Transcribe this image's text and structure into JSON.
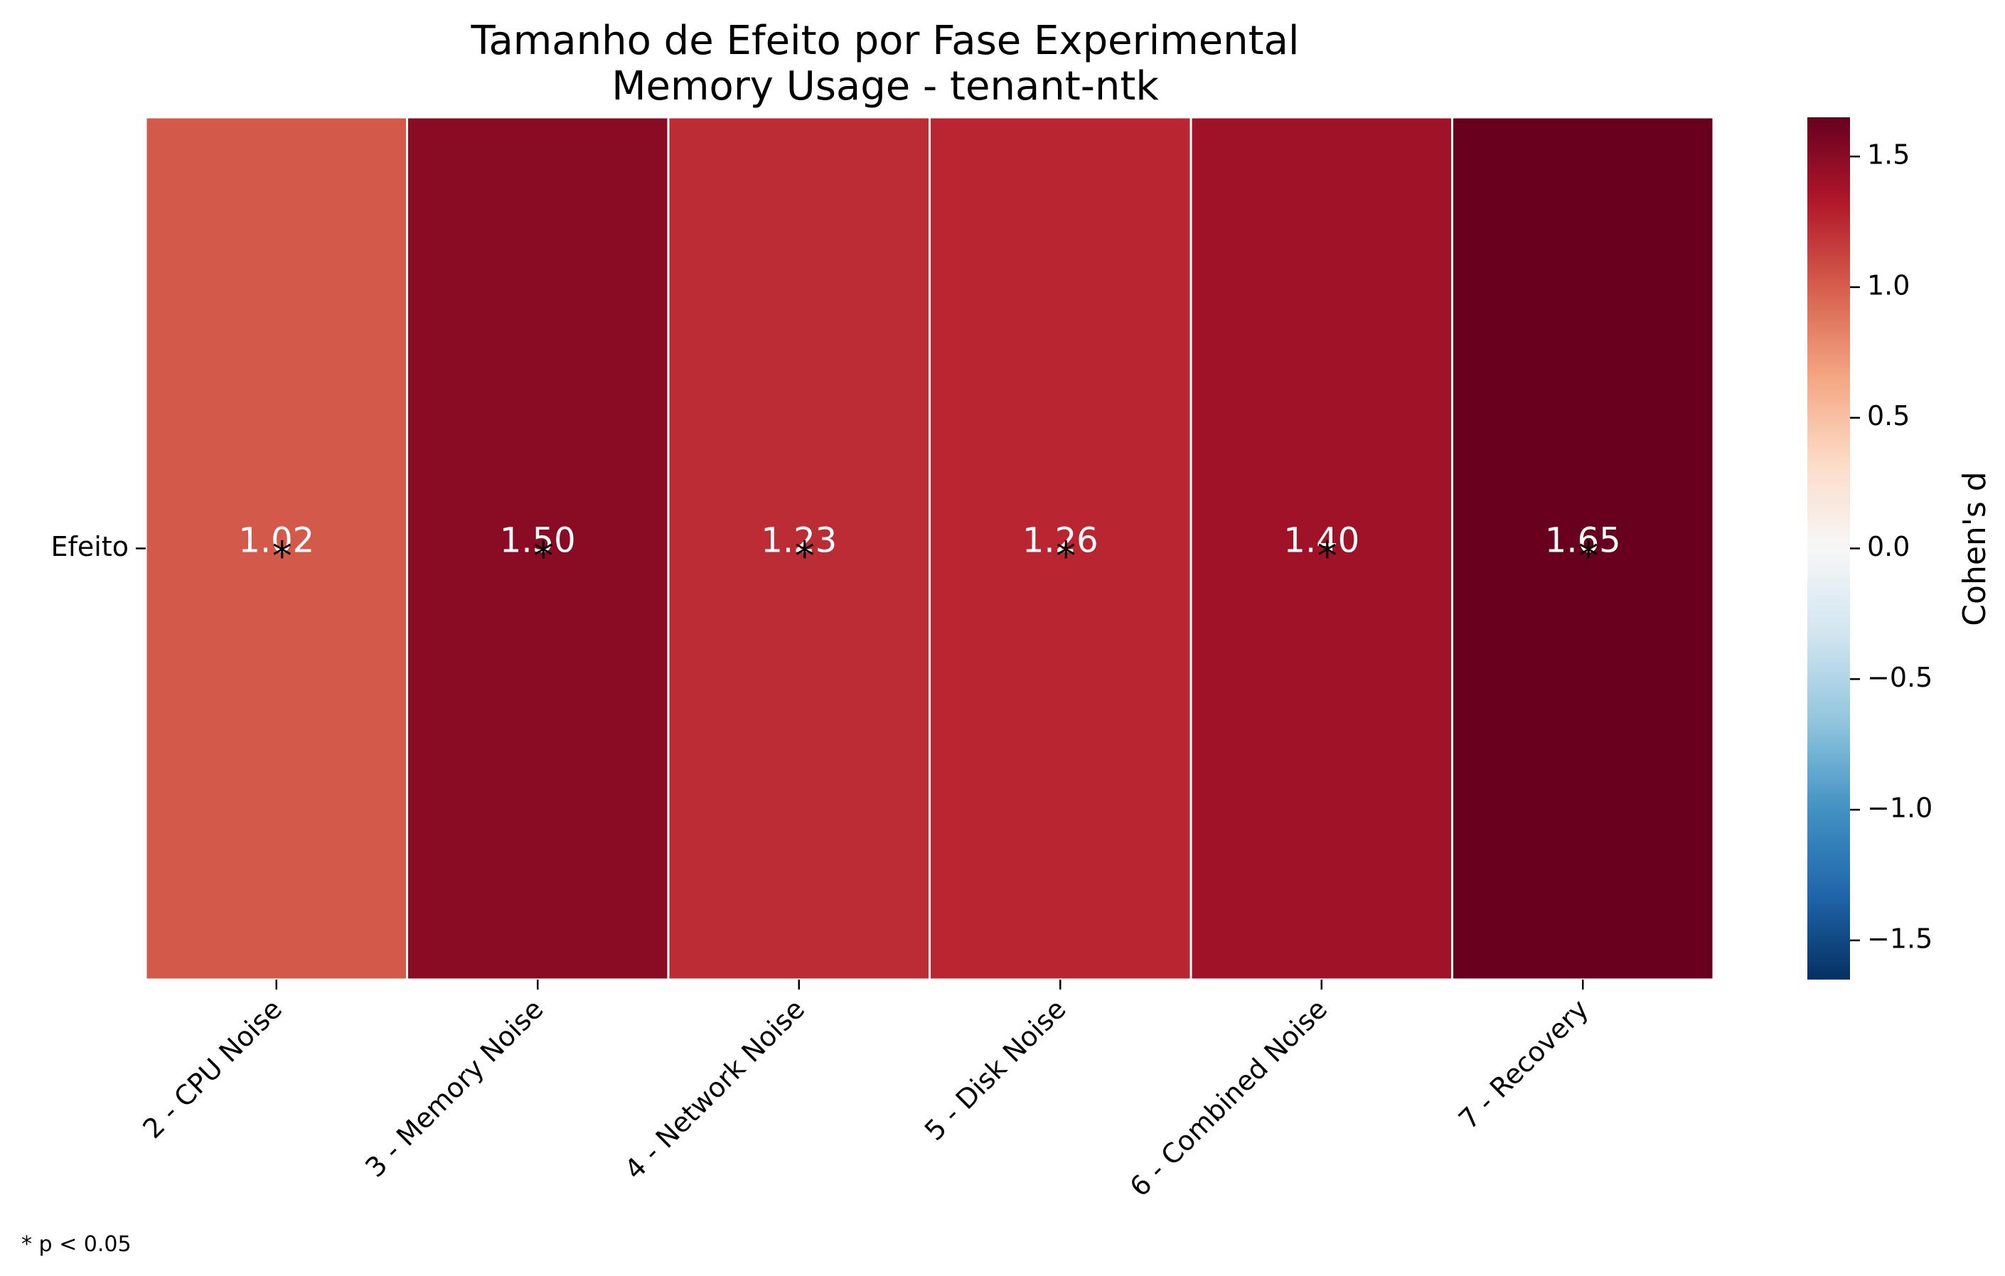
{
  "chart_data": {
    "type": "heatmap",
    "title": "Tamanho de Efeito por Fase Experimental",
    "subtitle": "Memory Usage - tenant-ntk",
    "row_labels": [
      "Efeito"
    ],
    "column_labels": [
      "2 - CPU Noise",
      "3 - Memory Noise",
      "4 - Network Noise",
      "5 - Disk Noise",
      "6 - Combined Noise",
      "7 - Recovery"
    ],
    "values": [
      [
        1.02,
        1.5,
        1.23,
        1.26,
        1.4,
        1.65
      ]
    ],
    "value_labels": [
      "1.02",
      "1.50",
      "1.23",
      "1.26",
      "1.40",
      "1.65"
    ],
    "significant": [
      true,
      true,
      true,
      true,
      true,
      true
    ],
    "significance_marker": "*",
    "colormap": "RdBu_r",
    "vmin": -1.65,
    "vmax": 1.65,
    "colorbar": {
      "label": "Cohen's d",
      "ticks": [
        1.5,
        1.0,
        0.5,
        0.0,
        -0.5,
        -1.0,
        -1.5
      ],
      "tick_labels": [
        "1.5",
        "1.0",
        "0.5",
        "0.0",
        "−0.5",
        "−1.0",
        "−1.5"
      ],
      "colors": [
        "#053061",
        "#2166ac",
        "#4393c3",
        "#92c5de",
        "#d1e5f0",
        "#f7f7f7",
        "#fddbc7",
        "#f4a582",
        "#d6604d",
        "#b2182b",
        "#67001f"
      ]
    },
    "footnote": "* p < 0.05"
  }
}
